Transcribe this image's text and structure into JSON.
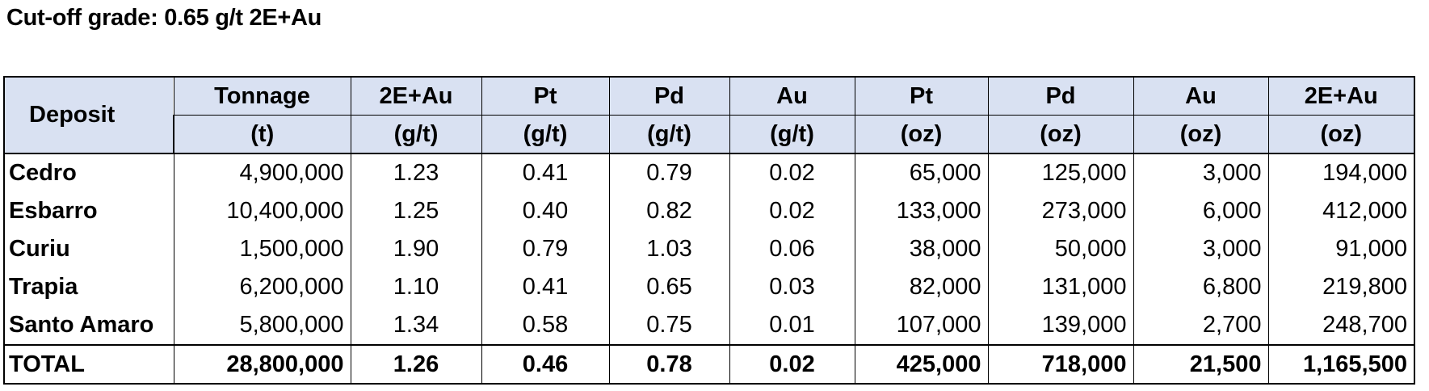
{
  "title": "Cut-off grade: 0.65 g/t 2E+Au",
  "table": {
    "deposit_header": "Deposit",
    "columns": [
      {
        "name": "Tonnage",
        "unit": "(t)"
      },
      {
        "name": "2E+Au",
        "unit": "(g/t)"
      },
      {
        "name": "Pt",
        "unit": "(g/t)"
      },
      {
        "name": "Pd",
        "unit": "(g/t)"
      },
      {
        "name": "Au",
        "unit": "(g/t)"
      },
      {
        "name": "Pt",
        "unit": "(oz)"
      },
      {
        "name": "Pd",
        "unit": "(oz)"
      },
      {
        "name": "Au",
        "unit": "(oz)"
      },
      {
        "name": "2E+Au",
        "unit": "(oz)"
      }
    ],
    "rows": [
      {
        "deposit": "Cedro",
        "values": [
          "4,900,000",
          "1.23",
          "0.41",
          "0.79",
          "0.02",
          "65,000",
          "125,000",
          "3,000",
          "194,000"
        ]
      },
      {
        "deposit": "Esbarro",
        "values": [
          "10,400,000",
          "1.25",
          "0.40",
          "0.82",
          "0.02",
          "133,000",
          "273,000",
          "6,000",
          "412,000"
        ]
      },
      {
        "deposit": "Curiu",
        "values": [
          "1,500,000",
          "1.90",
          "0.79",
          "1.03",
          "0.06",
          "38,000",
          "50,000",
          "3,000",
          "91,000"
        ]
      },
      {
        "deposit": "Trapia",
        "values": [
          "6,200,000",
          "1.10",
          "0.41",
          "0.65",
          "0.03",
          "82,000",
          "131,000",
          "6,800",
          "219,800"
        ]
      },
      {
        "deposit": "Santo Amaro",
        "values": [
          "5,800,000",
          "1.34",
          "0.58",
          "0.75",
          "0.01",
          "107,000",
          "139,000",
          "2,700",
          "248,700"
        ]
      }
    ],
    "total": {
      "deposit": "TOTAL",
      "values": [
        "28,800,000",
        "1.26",
        "0.46",
        "0.78",
        "0.02",
        "425,000",
        "718,000",
        "21,500",
        "1,165,500"
      ]
    }
  }
}
